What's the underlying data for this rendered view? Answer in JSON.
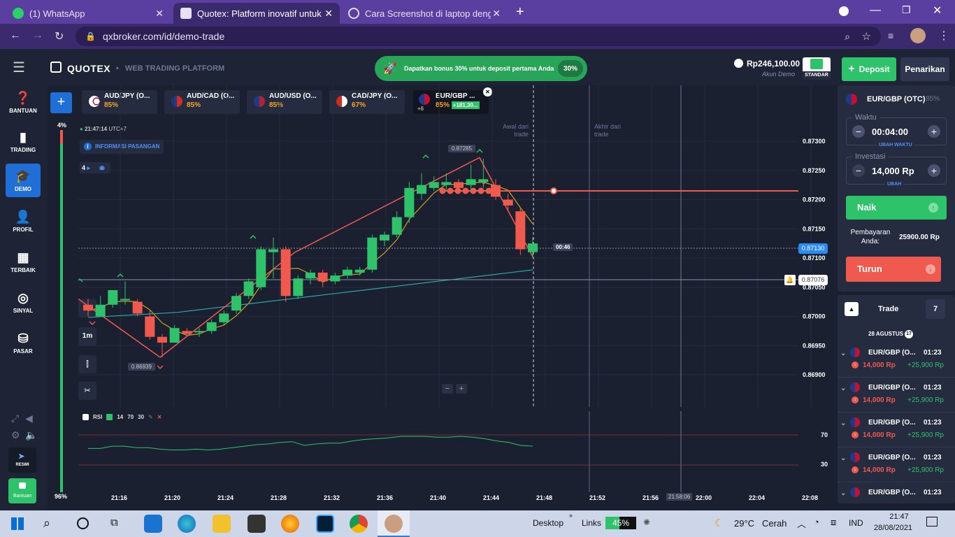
{
  "browser": {
    "tabs": [
      {
        "label": "(1) WhatsApp"
      },
      {
        "label": "Quotex: Platform inovatif untuk i..."
      },
      {
        "label": "Cara Screenshot di laptop denga..."
      }
    ],
    "url": "qxbroker.com/id/demo-trade"
  },
  "header": {
    "brand": "QUOTEX",
    "subtitle": "WEB TRADING PLATFORM",
    "promo": "Dapatkan bonus 30% untuk deposit pertama Anda",
    "promo_badge": "30%",
    "balance": "Rp246,100.00",
    "account": "Akun Demo",
    "account_type": "STANDAR",
    "deposit": "Deposit",
    "withdraw": "Penarikan"
  },
  "sidebar": {
    "items": [
      {
        "label": "BANTUAN"
      },
      {
        "label": "TRADING"
      },
      {
        "label": "DEMO"
      },
      {
        "label": "PROFIL"
      },
      {
        "label": "TERBAIK"
      },
      {
        "label": "SINYAL"
      },
      {
        "label": "PASAR"
      }
    ],
    "resmi": "RESMI",
    "bantuan": "Bantuan"
  },
  "assets": [
    {
      "name": "AUD/JPY (O...",
      "pct": "85%"
    },
    {
      "name": "AUD/CAD (O...",
      "pct": "85%"
    },
    {
      "name": "AUD/USD (O...",
      "pct": "85%"
    },
    {
      "name": "CAD/JPY (O...",
      "pct": "67%"
    },
    {
      "name": "EUR/GBP ...",
      "pct": "85%",
      "profit": "+181,30...",
      "count": "+6"
    }
  ],
  "chart": {
    "time": "21:47:14",
    "tz": "UTC+7",
    "info": "INFORMASI PASANGAN",
    "sentiment_top": "4%",
    "sentiment_bottom": "96%",
    "indicator_count": "4",
    "timeframe": "1m",
    "label_start": "Awal dari trade",
    "label_end": "Akhir dari trade",
    "high_label": "0.87285",
    "low_label": "0.86939",
    "countdown": "00:46",
    "current_price": "0.87130",
    "alert_price": "0.87076",
    "end_time": "21:58:06",
    "zoom_minus": "−",
    "zoom_plus": "+",
    "rsi": {
      "name": "RSI",
      "period": "14",
      "upper": "70",
      "lower": "30"
    }
  },
  "chart_data": {
    "type": "candlestick",
    "y_ticks": [
      "0.87300",
      "0.87250",
      "0.87200",
      "0.87150",
      "0.87100",
      "0.87050",
      "0.87000",
      "0.86950",
      "0.86900"
    ],
    "ylim": [
      0.8688,
      0.8733
    ],
    "x_ticks": [
      "21:16",
      "21:20",
      "21:24",
      "21:28",
      "21:32",
      "21:36",
      "21:40",
      "21:44",
      "21:48",
      "21:52",
      "21:56",
      "22:00",
      "22:04",
      "22:08"
    ],
    "candles": [
      [
        0.8702,
        0.8703,
        0.8701,
        0.87
      ],
      [
        0.87,
        0.87035,
        0.8702,
        0.87
      ],
      [
        0.8702,
        0.87025,
        0.87045,
        0.87015
      ],
      [
        0.8703,
        0.8706,
        0.8703,
        0.8702
      ],
      [
        0.87025,
        0.8703,
        0.87005,
        0.87
      ],
      [
        0.87,
        0.8701,
        0.86965,
        0.8696
      ],
      [
        0.86965,
        0.8697,
        0.86955,
        0.8693
      ],
      [
        0.86955,
        0.86985,
        0.8698,
        0.86955
      ],
      [
        0.86975,
        0.8698,
        0.8697,
        0.86965
      ],
      [
        0.86975,
        0.8698,
        0.86975,
        0.86965
      ],
      [
        0.86975,
        0.86995,
        0.8699,
        0.8697
      ],
      [
        0.8699,
        0.8701,
        0.87005,
        0.86985
      ],
      [
        0.8701,
        0.8704,
        0.87035,
        0.87005
      ],
      [
        0.87035,
        0.87065,
        0.8706,
        0.8703
      ],
      [
        0.8705,
        0.8712,
        0.87115,
        0.87045
      ],
      [
        0.8711,
        0.87135,
        0.87115,
        0.87065
      ],
      [
        0.87115,
        0.8712,
        0.87035,
        0.87025
      ],
      [
        0.87035,
        0.8707,
        0.87065,
        0.8703
      ],
      [
        0.87065,
        0.8708,
        0.87075,
        0.87055
      ],
      [
        0.87075,
        0.8708,
        0.8706,
        0.8705
      ],
      [
        0.8706,
        0.87075,
        0.8707,
        0.87055
      ],
      [
        0.8707,
        0.87085,
        0.8708,
        0.87065
      ],
      [
        0.87075,
        0.87085,
        0.8708,
        0.8707
      ],
      [
        0.8708,
        0.8714,
        0.87135,
        0.87075
      ],
      [
        0.8713,
        0.87145,
        0.8714,
        0.8712
      ],
      [
        0.8714,
        0.8718,
        0.8717,
        0.87135
      ],
      [
        0.8717,
        0.8723,
        0.8722,
        0.8716
      ],
      [
        0.8721,
        0.87245,
        0.87225,
        0.872
      ],
      [
        0.8722,
        0.8724,
        0.8723,
        0.87215
      ],
      [
        0.87225,
        0.87245,
        0.8723,
        0.87215
      ],
      [
        0.8723,
        0.87235,
        0.8722,
        0.8721
      ],
      [
        0.87225,
        0.8726,
        0.87235,
        0.87215
      ],
      [
        0.8723,
        0.8727,
        0.87235,
        0.8722
      ],
      [
        0.87225,
        0.87235,
        0.87205,
        0.872
      ],
      [
        0.872,
        0.8721,
        0.8719,
        0.8718
      ],
      [
        0.8718,
        0.87185,
        0.87115,
        0.87105
      ],
      [
        0.8711,
        0.87135,
        0.87125,
        0.871
      ]
    ]
  },
  "trade_panel": {
    "asset": "EUR/GBP (OTC)",
    "asset_pct": "85%",
    "time_label": "Waktu",
    "time_value": "00:04:00",
    "time_change": "UBAH WAKTU",
    "invest_label": "Investasi",
    "invest_value": "14,000 Rp",
    "invest_change": "UBAH",
    "up": "Naik",
    "payout_label": "Pembayaran Anda:",
    "payout_value": "25900.00 Rp",
    "down": "Turun"
  },
  "trades": {
    "title": "Trade",
    "count": "7",
    "date": "28 AGUSTUS",
    "date_count": "17",
    "items": [
      {
        "asset": "EUR/GBP (O...",
        "time": "01:23",
        "amount": "14,000 Rp",
        "profit": "+25,900 Rp"
      },
      {
        "asset": "EUR/GBP (O...",
        "time": "01:23",
        "amount": "14,000 Rp",
        "profit": "+25,900 Rp"
      },
      {
        "asset": "EUR/GBP (O...",
        "time": "01:23",
        "amount": "14,000 Rp",
        "profit": "+25,900 Rp"
      },
      {
        "asset": "EUR/GBP (O...",
        "time": "01:23",
        "amount": "14,000 Rp",
        "profit": "+25,900 Rp"
      },
      {
        "asset": "EUR/GBP (O...",
        "time": "01:23",
        "amount": "",
        "profit": ""
      }
    ]
  },
  "taskbar": {
    "desktop": "Desktop",
    "links": "Links",
    "battery": "45%",
    "weather": "29°C",
    "weather_text": "Cerah",
    "lang": "IND",
    "time": "21:47",
    "date": "28/08/2021"
  },
  "colors": {
    "green": "#2ec26a",
    "red": "#f05a4e",
    "accent": "#1f6fd6",
    "bg": "#1b2031"
  }
}
